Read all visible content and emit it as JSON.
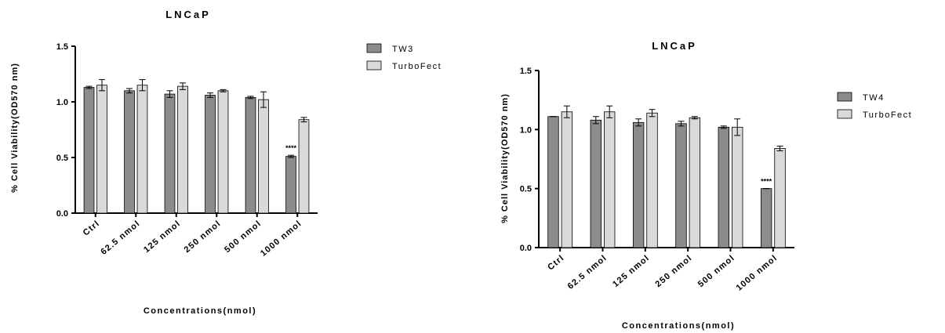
{
  "chart_data": [
    {
      "type": "bar",
      "title": "LNCaP",
      "xlabel": "Concentrations(nmol)",
      "ylabel": "% Cell Viability(OD570 nm)",
      "ylim": [
        0,
        1.5
      ],
      "yticks": [
        "0.0",
        "0.5",
        "1.0",
        "1.5"
      ],
      "categories": [
        "Ctrl",
        "62.5 nmol",
        "125 nmol",
        "250 nmol",
        "500 nmol",
        "1000 nmol"
      ],
      "legend_position": "right",
      "series": [
        {
          "name": "TW3",
          "color": "#8c8c8c",
          "values": [
            1.13,
            1.1,
            1.07,
            1.06,
            1.04,
            0.51
          ],
          "errors": [
            0.01,
            0.02,
            0.03,
            0.02,
            0.01,
            0.01
          ]
        },
        {
          "name": "TurboFect",
          "color": "#d9d9d9",
          "values": [
            1.15,
            1.15,
            1.14,
            1.1,
            1.02,
            0.84
          ],
          "errors": [
            0.05,
            0.05,
            0.03,
            0.01,
            0.07,
            0.02
          ]
        }
      ],
      "annotations": [
        {
          "category": "1000 nmol",
          "series": 0,
          "text": "****"
        }
      ]
    },
    {
      "type": "bar",
      "title": "LNCaP",
      "xlabel": "Concentrations(nmol)",
      "ylabel": "% Cell Viability(OD570 nm)",
      "ylim": [
        0,
        1.5
      ],
      "yticks": [
        "0.0",
        "0.5",
        "1.0",
        "1.5"
      ],
      "categories": [
        "Ctrl",
        "62.5 nmol",
        "125 nmol",
        "250 nmol",
        "500 nmol",
        "1000 nmol"
      ],
      "legend_position": "right",
      "series": [
        {
          "name": "TW4",
          "color": "#8c8c8c",
          "values": [
            1.11,
            1.08,
            1.06,
            1.05,
            1.02,
            0.5
          ],
          "errors": [
            0.0,
            0.03,
            0.03,
            0.02,
            0.01,
            0.0
          ]
        },
        {
          "name": "TurboFect",
          "color": "#d9d9d9",
          "values": [
            1.15,
            1.15,
            1.14,
            1.1,
            1.02,
            0.84
          ],
          "errors": [
            0.05,
            0.05,
            0.03,
            0.01,
            0.07,
            0.02
          ]
        }
      ],
      "annotations": [
        {
          "category": "1000 nmol",
          "series": 0,
          "text": "****"
        }
      ]
    }
  ]
}
